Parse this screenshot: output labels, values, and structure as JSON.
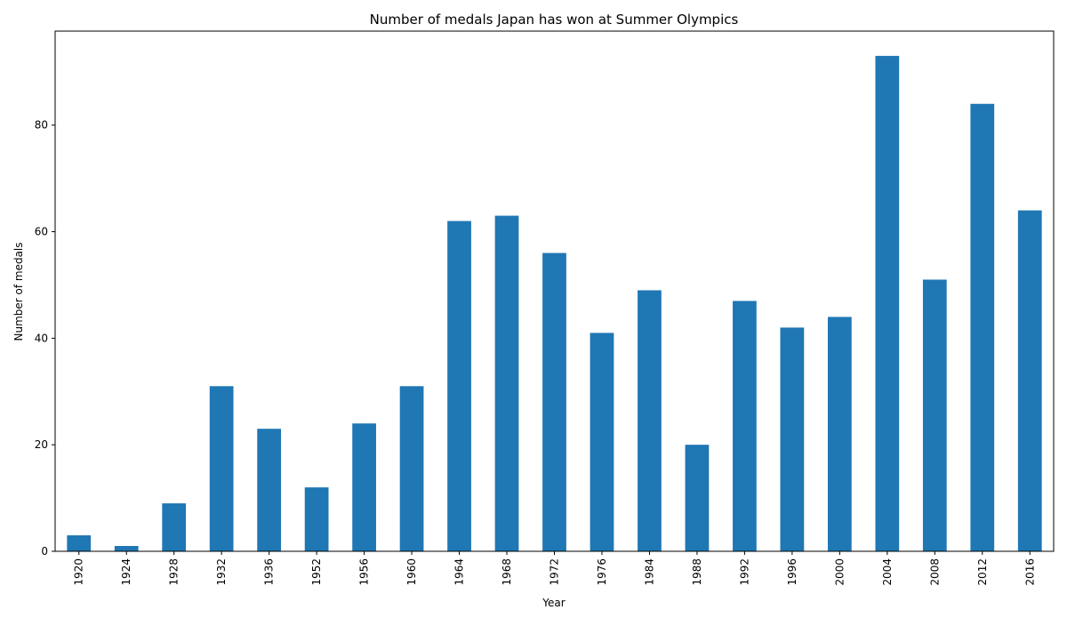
{
  "chart_data": {
    "type": "bar",
    "title": "Number of medals Japan has won at Summer Olympics",
    "xlabel": "Year",
    "ylabel": "Number of medals",
    "categories": [
      "1920",
      "1924",
      "1928",
      "1932",
      "1936",
      "1952",
      "1956",
      "1960",
      "1964",
      "1968",
      "1972",
      "1976",
      "1984",
      "1988",
      "1992",
      "1996",
      "2000",
      "2004",
      "2008",
      "2012",
      "2016"
    ],
    "values": [
      3,
      1,
      9,
      31,
      23,
      12,
      24,
      31,
      62,
      63,
      56,
      41,
      49,
      20,
      47,
      42,
      44,
      93,
      51,
      84,
      64
    ],
    "ylim": [
      0,
      97.65
    ],
    "yticks": [
      0,
      20,
      40,
      60,
      80
    ],
    "grid": false,
    "bar_color": "#1f77b4"
  }
}
